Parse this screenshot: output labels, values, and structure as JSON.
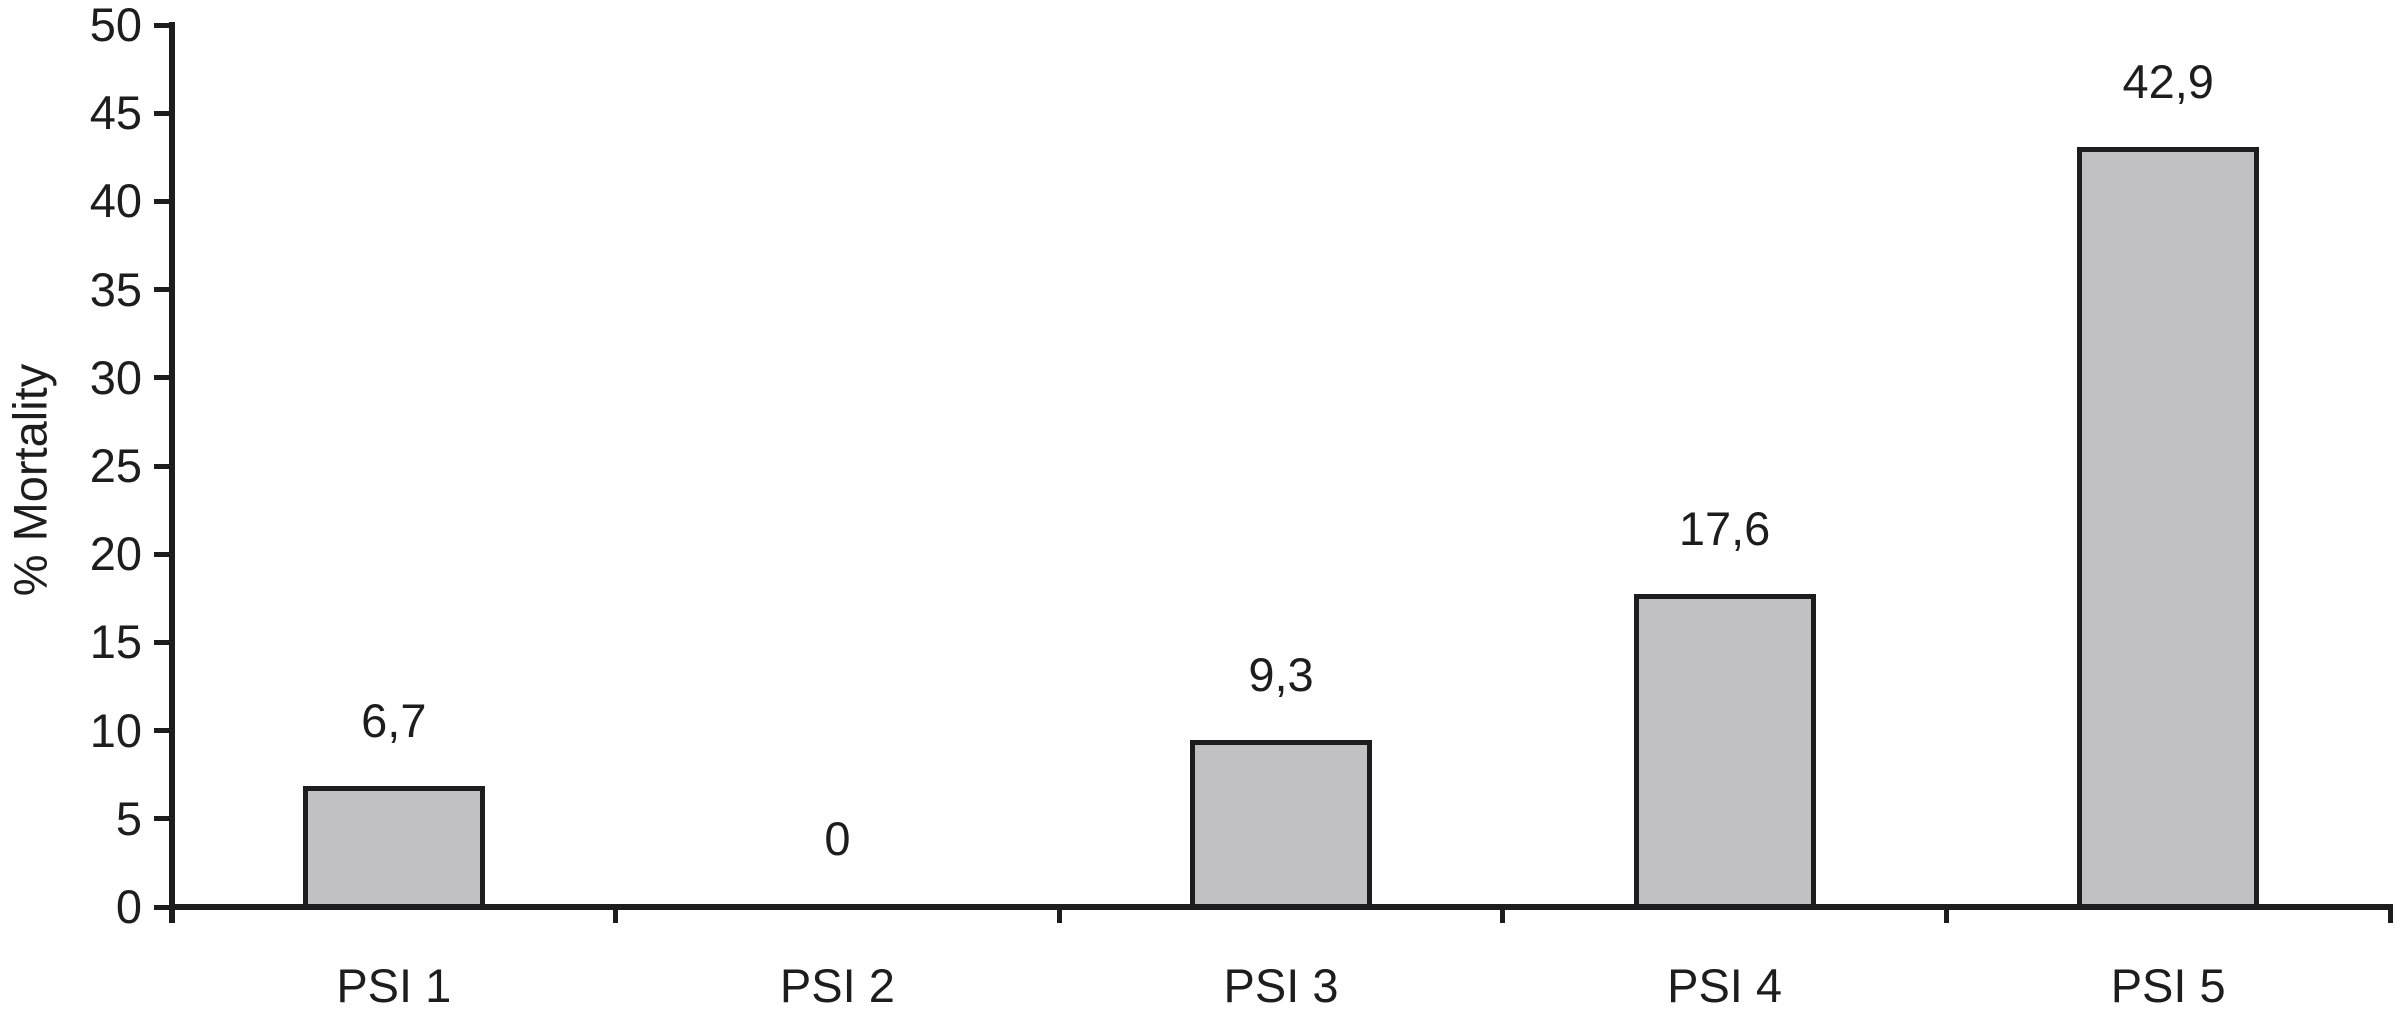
{
  "chart_data": {
    "type": "bar",
    "title": "",
    "categories": [
      "PSI 1",
      "PSI 2",
      "PSI 3",
      "PSI 4",
      "PSI 5"
    ],
    "values": [
      6.7,
      0,
      9.3,
      17.6,
      42.9
    ],
    "value_labels": [
      "6,7",
      "0",
      "9,3",
      "17,6",
      "42,9"
    ],
    "xlabel": "",
    "ylabel": "% Mortality",
    "ylim": [
      0,
      50
    ],
    "yticks": [
      0,
      5,
      10,
      15,
      20,
      25,
      30,
      35,
      40,
      45,
      50
    ],
    "grid": false,
    "legend": false,
    "colors": {
      "bar_fill": "#c1c1c3",
      "bar_border": "#1d1d1f",
      "axis": "#1d1d1f",
      "text": "#1d1d1f",
      "background": "#ffffff"
    }
  }
}
